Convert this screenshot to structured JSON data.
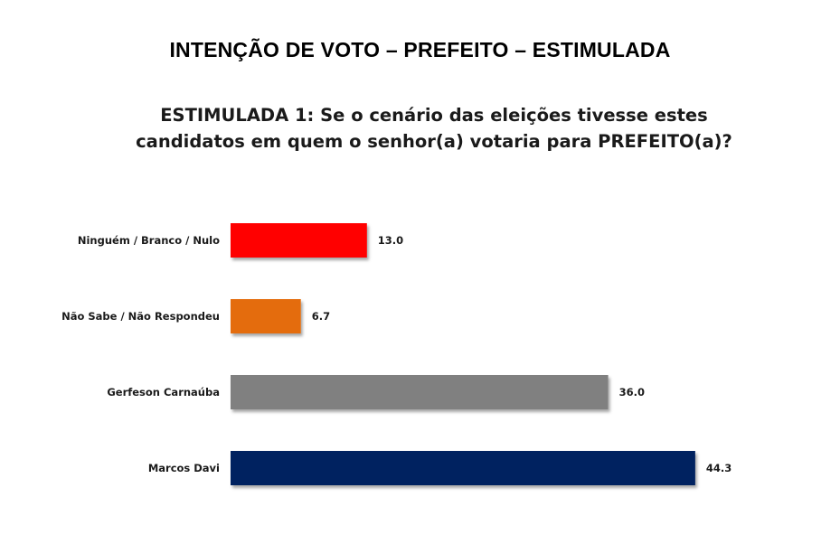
{
  "title": "INTENÇÃO DE VOTO – PREFEITO – ESTIMULADA",
  "subtitle": "ESTIMULADA 1: Se o cenário das eleições tivesse estes candidatos em quem o senhor(a) votaria para PREFEITO(a)?",
  "chart_data": {
    "type": "bar",
    "orientation": "horizontal",
    "categories": [
      "Ninguém / Branco / Nulo",
      "Não Sabe / Não Respondeu",
      "Gerfeson Carnaúba",
      "Marcos Davi"
    ],
    "values": [
      13.0,
      6.7,
      36.0,
      44.3
    ],
    "value_labels": [
      "13.0",
      "6.7",
      "36.0",
      "44.3"
    ],
    "colors": [
      "#ff0000",
      "#e46c0a",
      "#808080",
      "#002060"
    ],
    "grid": false,
    "legend": "none"
  }
}
